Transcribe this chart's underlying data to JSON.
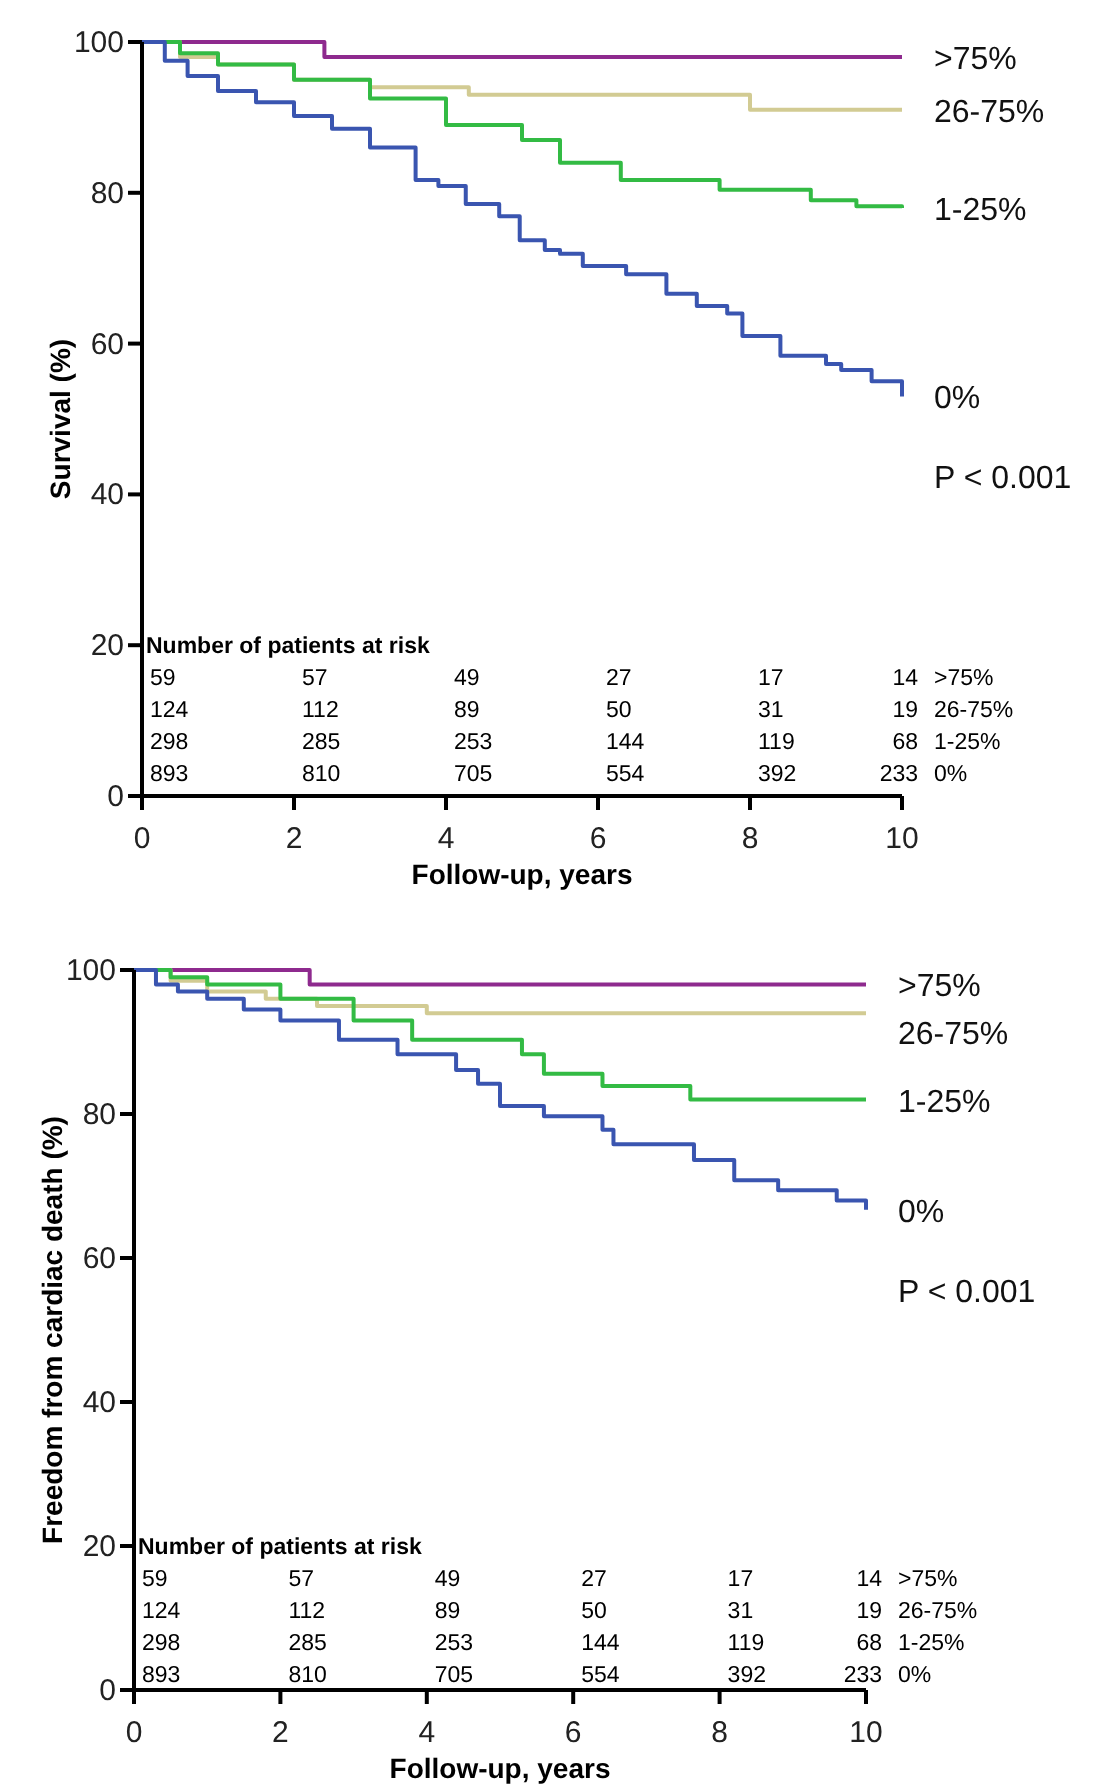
{
  "chart_data": [
    {
      "type": "step",
      "ylabel": "Survival (%)",
      "xlabel": "Follow-up, years",
      "xlim": [
        0,
        10
      ],
      "ylim": [
        0,
        100
      ],
      "xticks": [
        0,
        2,
        4,
        6,
        8,
        10
      ],
      "yticks": [
        0,
        20,
        40,
        60,
        80,
        100
      ],
      "grid": false,
      "annotations": [
        "P < 0.001",
        "Number of patients at risk",
        "59 57 49 27 17 14 >75%",
        "124 112 89 50 31 19 26-75%",
        "298 285 253 144 119 68 1-25%",
        "893 810 705 554 392 233 0%"
      ],
      "series": [
        {
          "name": ">75%",
          "color": "#8e2a8e",
          "x": [
            0,
            2.4,
            10
          ],
          "values": [
            100,
            98,
            98
          ]
        },
        {
          "name": "26-75%",
          "color": "#d2cb93",
          "x": [
            0,
            0.5,
            1,
            2,
            3,
            4.3,
            7.8,
            8,
            10
          ],
          "values": [
            100,
            98,
            97,
            95,
            94,
            93,
            93,
            91,
            91
          ]
        },
        {
          "name": "1-25%",
          "color": "#33bb44",
          "x": [
            0,
            0.5,
            1,
            2,
            3,
            4,
            5,
            5.5,
            6.3,
            7.6,
            8.8,
            9.4,
            10
          ],
          "values": [
            100,
            98.5,
            97,
            95,
            92.5,
            89,
            87,
            84,
            81.7,
            80.4,
            79,
            78.2,
            78
          ]
        },
        {
          "name": "0%",
          "color": "#3a55b0",
          "x": [
            0,
            0.3,
            0.6,
            1,
            1.5,
            2,
            2.5,
            3,
            3.6,
            3.9,
            4.26,
            4.7,
            4.97,
            5.3,
            5.5,
            5.8,
            6.37,
            6.9,
            7.3,
            7.7,
            7.9,
            8.4,
            9,
            9.2,
            9.6,
            10
          ],
          "values": [
            100,
            97.5,
            95.5,
            93.5,
            92,
            90.2,
            88.5,
            86,
            81.7,
            80.9,
            78.5,
            76.9,
            73.7,
            72.4,
            71.9,
            70.3,
            69.2,
            66.6,
            65,
            64,
            61,
            58.4,
            57.3,
            56.5,
            55,
            53
          ]
        }
      ]
    },
    {
      "type": "step",
      "ylabel": "Freedom from cardiac death (%)",
      "xlabel": "Follow-up, years",
      "xlim": [
        0,
        10
      ],
      "ylim": [
        0,
        100
      ],
      "xticks": [
        0,
        2,
        4,
        6,
        8,
        10
      ],
      "yticks": [
        0,
        20,
        40,
        60,
        80,
        100
      ],
      "grid": false,
      "annotations": [
        "P < 0.001",
        "Number of patients at risk",
        "59 57 49 27 17 14 >75%",
        "124 112 89 50 31 19 26-75%",
        "298 285 253 144 119 68 1-25%",
        "893 810 705 554 392 233 0%"
      ],
      "series": [
        {
          "name": ">75%",
          "color": "#8e2a8e",
          "x": [
            0,
            2.4,
            10
          ],
          "values": [
            100,
            98,
            98
          ]
        },
        {
          "name": "26-75%",
          "color": "#d2cb93",
          "x": [
            0,
            0.5,
            1,
            1.8,
            2.5,
            4,
            10
          ],
          "values": [
            100,
            98.5,
            97,
            96,
            95,
            94,
            94
          ]
        },
        {
          "name": "1-25%",
          "color": "#33bb44",
          "x": [
            0,
            0.5,
            1,
            2,
            3,
            3.8,
            5.3,
            5.6,
            6.4,
            7.6,
            10
          ],
          "values": [
            100,
            99,
            98,
            96,
            93,
            90.3,
            88.3,
            85.6,
            83.9,
            82,
            82
          ]
        },
        {
          "name": "0%",
          "color": "#3a55b0",
          "x": [
            0,
            0.3,
            0.6,
            1,
            1.5,
            2,
            2.8,
            3.6,
            4.4,
            4.7,
            5,
            5.6,
            6.4,
            6.55,
            7.65,
            8.2,
            8.8,
            9.6,
            10
          ],
          "values": [
            100,
            98,
            97,
            96,
            94.5,
            93,
            90.3,
            88.3,
            86.1,
            84.2,
            81.1,
            79.7,
            77.8,
            75.8,
            73.6,
            70.8,
            69.4,
            68,
            66.7
          ]
        }
      ]
    }
  ]
}
